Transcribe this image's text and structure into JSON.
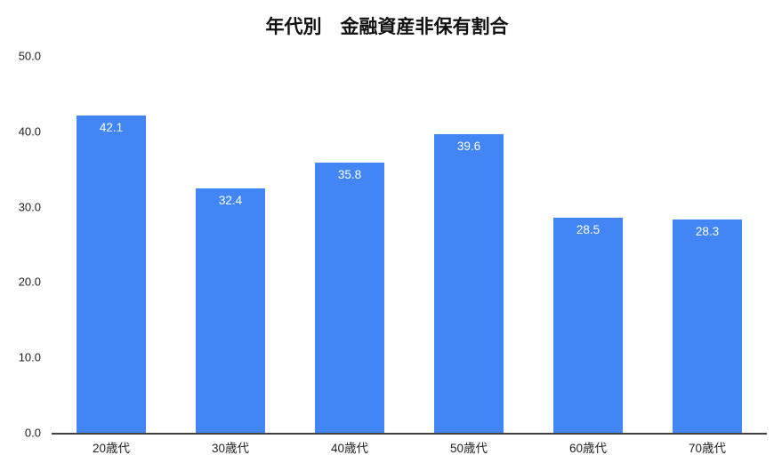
{
  "chart_data": {
    "type": "bar",
    "title": "年代別　金融資産非保有割合",
    "categories": [
      "20歳代",
      "30歳代",
      "40歳代",
      "50歳代",
      "60歳代",
      "70歳代"
    ],
    "values": [
      42.1,
      32.4,
      35.8,
      39.6,
      28.5,
      28.3
    ],
    "value_labels": [
      "42.1",
      "32.4",
      "35.8",
      "39.6",
      "28.5",
      "28.3"
    ],
    "xlabel": "",
    "ylabel": "",
    "ylim": [
      0,
      50
    ],
    "yticks": [
      0,
      10,
      20,
      30,
      40,
      50
    ],
    "ytick_labels": [
      "0.0",
      "10.0",
      "20.0",
      "30.0",
      "40.0",
      "50.0"
    ],
    "grid": false,
    "legend_position": "none",
    "bar_color": "#4285f4",
    "value_label_color": "#ffffff",
    "axis_line_color": "#424242"
  }
}
